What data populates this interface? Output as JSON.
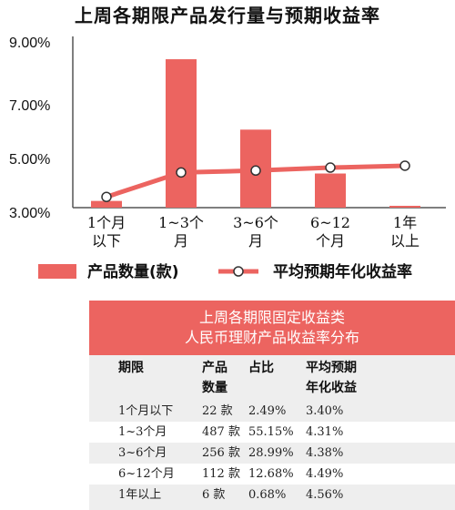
{
  "chart_data": {
    "type": "bar",
    "title": "上周各期限产品发行量与预期收益率",
    "categories": [
      "1个月\n以下",
      "1~3个\n月",
      "3~6个\n月",
      "6~12\n个月",
      "1年\n以上"
    ],
    "yticks": [
      "9.00%",
      "7.00%",
      "5.00%",
      "3.00%"
    ],
    "series": [
      {
        "name": "产品数量(款)",
        "type": "bar",
        "values": [
          22,
          487,
          256,
          112,
          6
        ]
      },
      {
        "name": "平均预期年化收益率",
        "type": "line",
        "values": [
          3.4,
          4.31,
          4.38,
          4.49,
          4.56
        ]
      }
    ],
    "colors": {
      "bar": "#ec6460",
      "line": "#ec6460",
      "marker_fill": "#ffffff",
      "marker_stroke": "#333333"
    }
  },
  "table": {
    "title_line1": "上周各期限固定收益类",
    "title_line2": "人民币理财产品收益率分布",
    "headers": [
      [
        "期限"
      ],
      [
        "产品",
        "数量"
      ],
      [
        "占比"
      ],
      [
        "平均预期",
        "年化收益"
      ]
    ],
    "rows": [
      [
        "1个月以下",
        "22 款",
        "2.49%",
        "3.40%"
      ],
      [
        "1~3个月",
        "487 款",
        "55.15%",
        "4.31%"
      ],
      [
        "3~6个月",
        "256 款",
        "28.99%",
        "4.38%"
      ],
      [
        "6~12个月",
        "112 款",
        "12.68%",
        "4.49%"
      ],
      [
        "1年以上",
        "6 款",
        "0.68%",
        "4.56%"
      ]
    ]
  }
}
